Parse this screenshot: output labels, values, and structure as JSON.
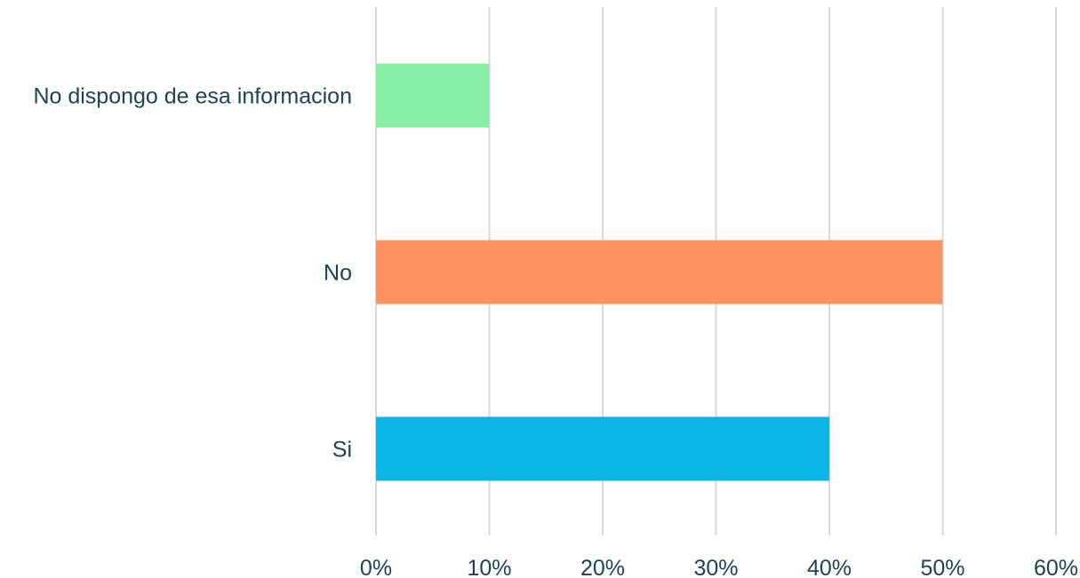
{
  "chart_data": {
    "type": "bar",
    "orientation": "horizontal",
    "categories": [
      "No dispongo de esa informacion",
      "No",
      "Si"
    ],
    "values": [
      10,
      50,
      40
    ],
    "value_unit": "%",
    "colors": [
      "#87efa6",
      "#ff9161",
      "#0bb4e5"
    ],
    "xlim": [
      0,
      60
    ],
    "xticks": [
      "0%",
      "10%",
      "20%",
      "30%",
      "40%",
      "50%",
      "60%"
    ],
    "grid": "vertical",
    "title": "",
    "xlabel": "",
    "ylabel": ""
  }
}
